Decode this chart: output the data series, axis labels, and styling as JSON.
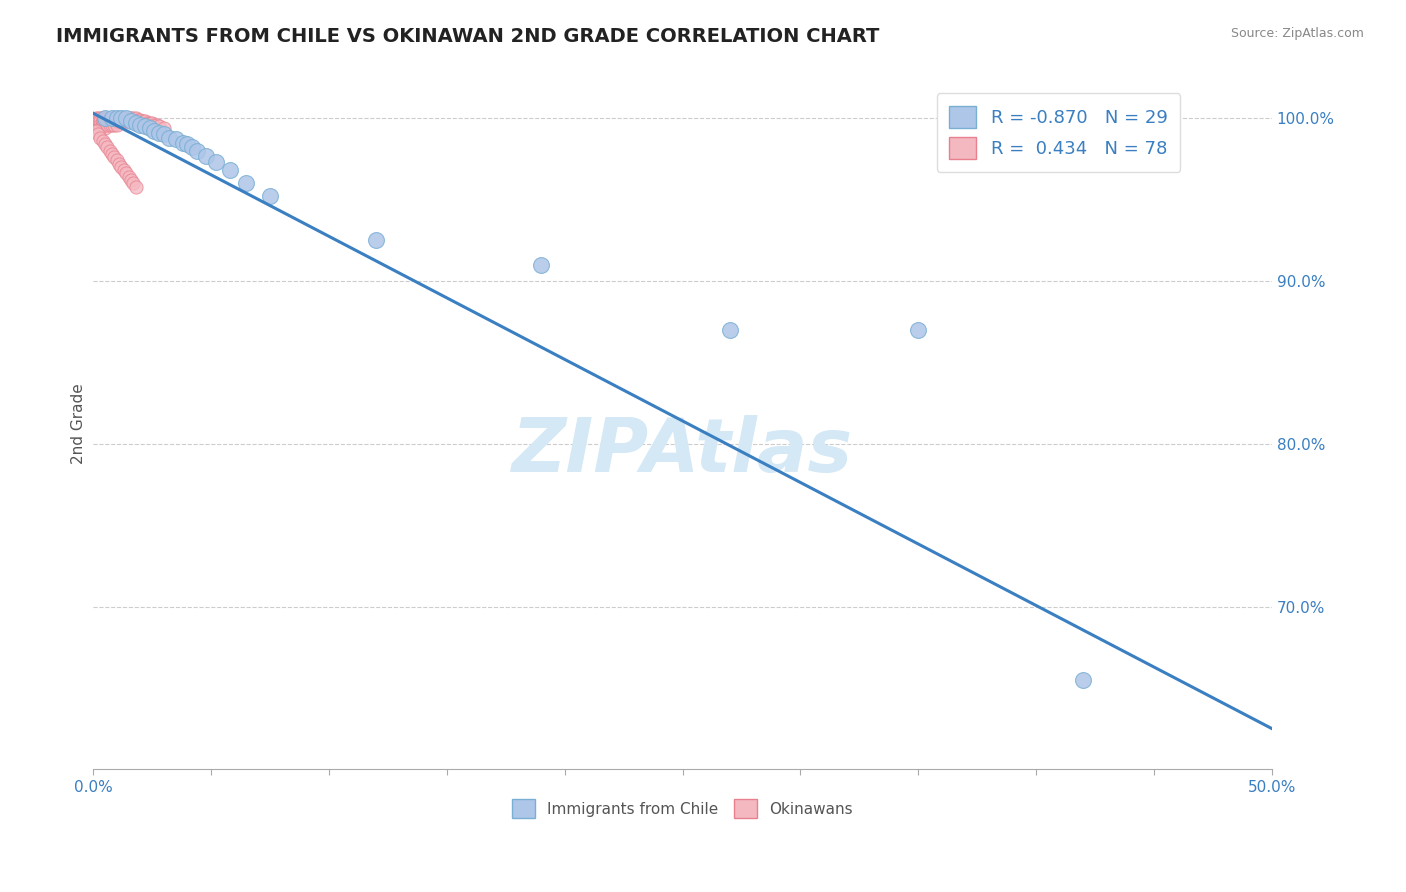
{
  "title": "IMMIGRANTS FROM CHILE VS OKINAWAN 2ND GRADE CORRELATION CHART",
  "source_text": "Source: ZipAtlas.com",
  "ylabel": "2nd Grade",
  "xlim": [
    0.0,
    0.5
  ],
  "ylim": [
    0.6,
    1.025
  ],
  "xtick_vals": [
    0.0,
    0.05,
    0.1,
    0.15,
    0.2,
    0.25,
    0.3,
    0.35,
    0.4,
    0.45,
    0.5
  ],
  "xtick_labels_show": [
    "0.0%",
    "",
    "",
    "",
    "",
    "",
    "",
    "",
    "",
    "",
    "50.0%"
  ],
  "ytick_labels": [
    "70.0%",
    "80.0%",
    "90.0%",
    "100.0%"
  ],
  "ytick_vals": [
    0.7,
    0.8,
    0.9,
    1.0
  ],
  "legend_items": [
    {
      "label": "R = -0.870   N = 29",
      "color": "#aec6e8"
    },
    {
      "label": "R =  0.434   N = 78",
      "color": "#f4b8c1"
    }
  ],
  "blue_scatter_x": [
    0.005,
    0.008,
    0.01,
    0.012,
    0.014,
    0.016,
    0.018,
    0.02,
    0.022,
    0.024,
    0.026,
    0.028,
    0.03,
    0.032,
    0.035,
    0.038,
    0.04,
    0.042,
    0.044,
    0.048,
    0.052,
    0.058,
    0.065,
    0.075,
    0.12,
    0.19,
    0.27,
    0.35,
    0.42
  ],
  "blue_scatter_y": [
    1.0,
    1.0,
    1.0,
    1.0,
    1.0,
    0.998,
    0.997,
    0.996,
    0.995,
    0.994,
    0.992,
    0.991,
    0.99,
    0.988,
    0.987,
    0.985,
    0.984,
    0.982,
    0.98,
    0.977,
    0.973,
    0.968,
    0.96,
    0.952,
    0.925,
    0.91,
    0.87,
    0.87,
    0.655
  ],
  "pink_scatter_x": [
    0.001,
    0.001,
    0.001,
    0.001,
    0.002,
    0.002,
    0.002,
    0.002,
    0.003,
    0.003,
    0.003,
    0.003,
    0.004,
    0.004,
    0.004,
    0.004,
    0.005,
    0.005,
    0.005,
    0.005,
    0.006,
    0.006,
    0.006,
    0.007,
    0.007,
    0.007,
    0.008,
    0.008,
    0.008,
    0.009,
    0.009,
    0.009,
    0.01,
    0.01,
    0.01,
    0.011,
    0.011,
    0.012,
    0.012,
    0.013,
    0.013,
    0.014,
    0.014,
    0.015,
    0.015,
    0.016,
    0.016,
    0.017,
    0.018,
    0.019,
    0.02,
    0.021,
    0.022,
    0.023,
    0.024,
    0.025,
    0.026,
    0.027,
    0.028,
    0.03,
    0.001,
    0.002,
    0.003,
    0.004,
    0.005,
    0.006,
    0.007,
    0.008,
    0.009,
    0.01,
    0.011,
    0.012,
    0.013,
    0.014,
    0.015,
    0.016,
    0.017,
    0.018
  ],
  "pink_scatter_y": [
    1.0,
    0.998,
    0.996,
    0.994,
    1.0,
    0.998,
    0.996,
    0.994,
    1.0,
    0.998,
    0.996,
    0.994,
    1.0,
    0.998,
    0.997,
    0.995,
    1.0,
    0.998,
    0.996,
    0.994,
    1.0,
    0.998,
    0.996,
    1.0,
    0.998,
    0.996,
    1.0,
    0.998,
    0.996,
    1.0,
    0.998,
    0.996,
    1.0,
    0.998,
    0.996,
    1.0,
    0.998,
    1.0,
    0.998,
    1.0,
    0.998,
    1.0,
    0.998,
    1.0,
    0.998,
    1.0,
    0.998,
    1.0,
    1.0,
    0.999,
    0.999,
    0.998,
    0.998,
    0.997,
    0.997,
    0.997,
    0.996,
    0.996,
    0.995,
    0.994,
    0.992,
    0.99,
    0.988,
    0.986,
    0.984,
    0.982,
    0.98,
    0.978,
    0.976,
    0.974,
    0.972,
    0.97,
    0.968,
    0.966,
    0.964,
    0.962,
    0.96,
    0.958
  ],
  "regression_line_x": [
    0.0,
    0.5
  ],
  "regression_line_y": [
    1.003,
    0.625
  ],
  "regression_color": "#3a7fc1",
  "blue_dot_color": "#aec6e8",
  "blue_dot_edge": "#7aafd4",
  "pink_dot_color": "#f4b8c1",
  "pink_dot_edge": "#e8808e",
  "watermark_text": "ZIPAtlas",
  "watermark_color": "#d4e8f5",
  "background_color": "#ffffff",
  "grid_color": "#cccccc",
  "title_color": "#222222",
  "axis_label_color": "#555555",
  "right_label_color": "#3a7fc1",
  "bottom_legend_labels": [
    "Immigrants from Chile",
    "Okinawans"
  ]
}
